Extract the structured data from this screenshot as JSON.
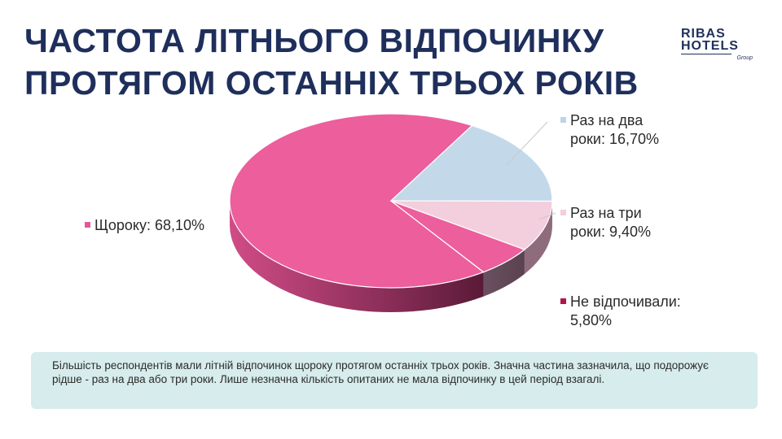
{
  "title_lines": [
    "ЧАСТОТА ЛІТНЬОГО ВІДПОЧИНКУ",
    "ПРОТЯГОМ ОСТАННІХ ТРЬОХ РОКІВ"
  ],
  "logo": {
    "line1": "RIBAS",
    "line2": "HOTELS",
    "line3": "Group"
  },
  "note": "Більшість респондентів мали літній відпочинок щороку протягом останніх трьох років. Значна частина зазначила, що подорожує рідше - раз на два або три роки. Лише незначна кількість опитаних не мала відпочинку в цей період взагалі.",
  "colors": {
    "title": "#1f2f5c",
    "annual": "#ec5e9c",
    "every_two": "#bfd6e8",
    "every_three": "#f3cfde",
    "none": "#b3134e",
    "note_bg": "#d7ecec"
  },
  "chart_data": {
    "type": "pie",
    "three_d": true,
    "slices": [
      {
        "label": "Щороку: 68,10%",
        "value": 68.1,
        "color": "#ec5e9c",
        "legend_color": "#e4579a"
      },
      {
        "label": "Раз на два роки: 16,70%",
        "value": 16.7,
        "color": "#c3d9ea",
        "legend_color": "#bcd4e8"
      },
      {
        "label": "Раз на три роки: 9,40%",
        "value": 9.4,
        "color": "#f3cedd",
        "legend_color": "#f3cedd"
      },
      {
        "label": "Не відпочивали: 5,80%",
        "value": 5.8,
        "color": "#6e5260",
        "legend_color": "#b3134e"
      }
    ]
  }
}
